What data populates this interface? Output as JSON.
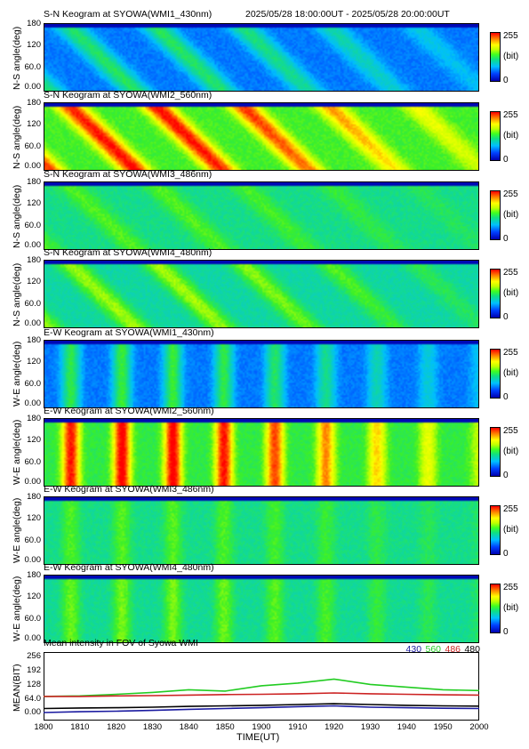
{
  "header": {
    "title": "S-N Keogram at SYOWA(WMI1_430nm)",
    "time_range": "2025/05/28 18:00:00UT - 2025/05/28 20:00:00UT"
  },
  "panels": [
    {
      "title": "S-N Keogram at SYOWA(WMI1_430nm)",
      "ylabel": "N-S angle(deg)",
      "yticks": [
        "180",
        "120",
        "60.0",
        "0.00"
      ],
      "cbar_max": "255",
      "cbar_unit": "(bit)",
      "cbar_min": "0"
    },
    {
      "title": "S-N Keogram at SYOWA(WMI2_560nm)",
      "ylabel": "N-S angle(deg)",
      "yticks": [
        "180",
        "120",
        "60.0",
        "0.00"
      ],
      "cbar_max": "255",
      "cbar_unit": "(bit)",
      "cbar_min": "0"
    },
    {
      "title": "S-N Keogram at SYOWA(WMI3_486nm)",
      "ylabel": "N-S angle(deg)",
      "yticks": [
        "180",
        "120",
        "60.0",
        "0.00"
      ],
      "cbar_max": "255",
      "cbar_unit": "(bit)",
      "cbar_min": "0"
    },
    {
      "title": "S-N Keogram at SYOWA(WMI4_480nm)",
      "ylabel": "N-S angle(deg)",
      "yticks": [
        "180",
        "120",
        "60.0",
        "0.00"
      ],
      "cbar_max": "255",
      "cbar_unit": "(bit)",
      "cbar_min": "0"
    },
    {
      "title": "E-W Keogram at SYOWA(WMI1_430nm)",
      "ylabel": "W-E angle(deg)",
      "yticks": [
        "180",
        "120",
        "60.0",
        "0.00"
      ],
      "cbar_max": "255",
      "cbar_unit": "(bit)",
      "cbar_min": "0"
    },
    {
      "title": "E-W Keogram at SYOWA(WMI2_560nm)",
      "ylabel": "W-E angle(deg)",
      "yticks": [
        "180",
        "120",
        "60.0",
        "0.00"
      ],
      "cbar_max": "255",
      "cbar_unit": "(bit)",
      "cbar_min": "0"
    },
    {
      "title": "E-W Keogram at SYOWA(WMI3_486nm)",
      "ylabel": "W-E angle(deg)",
      "yticks": [
        "180",
        "120",
        "60.0",
        "0.00"
      ],
      "cbar_max": "255",
      "cbar_unit": "(bit)",
      "cbar_min": "0"
    },
    {
      "title": "E-W Keogram at SYOWA(WMI4_480nm)",
      "ylabel": "W-E angle(deg)",
      "yticks": [
        "180",
        "120",
        "60.0",
        "0.00"
      ],
      "cbar_max": "255",
      "cbar_unit": "(bit)",
      "cbar_min": "0"
    }
  ],
  "mean_panel": {
    "title": "Mean intensity in FOV of Syowa WMI",
    "ylabel": "MEAN(BIT)",
    "yticks": [
      "256",
      "192",
      "128",
      "64.0",
      "0.00"
    ],
    "legend": [
      {
        "label": "430",
        "color": "#1a1aa0"
      },
      {
        "label": "560",
        "color": "#22cc22"
      },
      {
        "label": "486",
        "color": "#cc2222"
      },
      {
        "label": "480",
        "color": "#000000"
      }
    ]
  },
  "xaxis": {
    "label": "TIME(UT)",
    "ticks": [
      "1800",
      "1810",
      "1820",
      "1830",
      "1840",
      "1850",
      "1900",
      "1910",
      "1920",
      "1930",
      "1940",
      "1950",
      "2000"
    ]
  },
  "chart_data": [
    {
      "type": "heatmap",
      "title": "S-N Keogram at SYOWA(WMI1_430nm)",
      "xlabel": "",
      "ylabel": "N-S angle(deg)",
      "xlim": [
        "1800",
        "2000"
      ],
      "ylim": [
        0,
        180
      ],
      "zlim": [
        0,
        255
      ],
      "zunit": "(bit)"
    },
    {
      "type": "heatmap",
      "title": "S-N Keogram at SYOWA(WMI2_560nm)",
      "xlabel": "",
      "ylabel": "N-S angle(deg)",
      "xlim": [
        "1800",
        "2000"
      ],
      "ylim": [
        0,
        180
      ],
      "zlim": [
        0,
        255
      ],
      "zunit": "(bit)"
    },
    {
      "type": "heatmap",
      "title": "S-N Keogram at SYOWA(WMI3_486nm)",
      "xlabel": "",
      "ylabel": "N-S angle(deg)",
      "xlim": [
        "1800",
        "2000"
      ],
      "ylim": [
        0,
        180
      ],
      "zlim": [
        0,
        255
      ],
      "zunit": "(bit)"
    },
    {
      "type": "heatmap",
      "title": "S-N Keogram at SYOWA(WMI4_480nm)",
      "xlabel": "",
      "ylabel": "N-S angle(deg)",
      "xlim": [
        "1800",
        "2000"
      ],
      "ylim": [
        0,
        180
      ],
      "zlim": [
        0,
        255
      ],
      "zunit": "(bit)"
    },
    {
      "type": "heatmap",
      "title": "E-W Keogram at SYOWA(WMI1_430nm)",
      "xlabel": "",
      "ylabel": "W-E angle(deg)",
      "xlim": [
        "1800",
        "2000"
      ],
      "ylim": [
        0,
        180
      ],
      "zlim": [
        0,
        255
      ],
      "zunit": "(bit)"
    },
    {
      "type": "heatmap",
      "title": "E-W Keogram at SYOWA(WMI2_560nm)",
      "xlabel": "",
      "ylabel": "W-E angle(deg)",
      "xlim": [
        "1800",
        "2000"
      ],
      "ylim": [
        0,
        180
      ],
      "zlim": [
        0,
        255
      ],
      "zunit": "(bit)"
    },
    {
      "type": "heatmap",
      "title": "E-W Keogram at SYOWA(WMI3_486nm)",
      "xlabel": "",
      "ylabel": "W-E angle(deg)",
      "xlim": [
        "1800",
        "2000"
      ],
      "ylim": [
        0,
        180
      ],
      "zlim": [
        0,
        255
      ],
      "zunit": "(bit)"
    },
    {
      "type": "heatmap",
      "title": "E-W Keogram at SYOWA(WMI4_480nm)",
      "xlabel": "TIME(UT)",
      "ylabel": "W-E angle(deg)",
      "xlim": [
        "1800",
        "2000"
      ],
      "ylim": [
        0,
        180
      ],
      "zlim": [
        0,
        255
      ],
      "zunit": "(bit)"
    },
    {
      "type": "line",
      "title": "Mean intensity in FOV of Syowa WMI",
      "xlabel": "TIME(UT)",
      "ylabel": "MEAN(BIT)",
      "ylim": [
        0,
        256
      ],
      "x": [
        "1800",
        "1810",
        "1820",
        "1830",
        "1840",
        "1850",
        "1900",
        "1910",
        "1920",
        "1930",
        "1940",
        "1950",
        "2000"
      ],
      "series": [
        {
          "name": "430",
          "color": "#1a1aa0",
          "values": [
            30,
            33,
            35,
            38,
            42,
            45,
            48,
            52,
            55,
            50,
            48,
            46,
            45
          ]
        },
        {
          "name": "560",
          "color": "#22cc22",
          "values": [
            90,
            92,
            98,
            105,
            115,
            110,
            130,
            140,
            155,
            135,
            125,
            115,
            112
          ]
        },
        {
          "name": "486",
          "color": "#cc2222",
          "values": [
            90,
            90,
            92,
            93,
            95,
            97,
            98,
            100,
            103,
            100,
            98,
            96,
            95
          ]
        },
        {
          "name": "480",
          "color": "#000000",
          "values": [
            45,
            47,
            48,
            50,
            53,
            55,
            57,
            60,
            63,
            60,
            57,
            55,
            54
          ]
        }
      ]
    }
  ]
}
